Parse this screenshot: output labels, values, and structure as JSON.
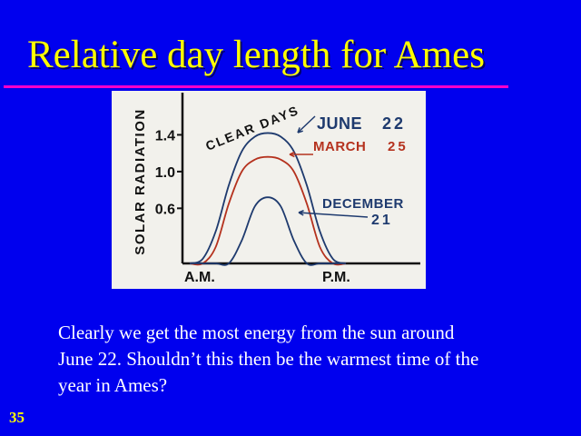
{
  "slide": {
    "title": "Relative day length for Ames",
    "caption": "Clearly we get the most energy from the sun around June 22. Shouldn’t this then be the warmest time of the year in Ames?",
    "number": "35"
  },
  "colors": {
    "background": "#0000ee",
    "title": "#ffff00",
    "rule": "#ff00cc",
    "caption": "#ffffff",
    "june": "#1e3a6e",
    "march": "#b5321e",
    "december": "#1e3a6e"
  },
  "chart_data": {
    "type": "line",
    "title": "",
    "annotation": "CLEAR DAYS",
    "xlabel": "",
    "ylabel": "SOLAR RADIATION",
    "x_tick_labels": [
      "A.M.",
      "P.M."
    ],
    "y_ticks": [
      1.4,
      1.0,
      0.6
    ],
    "y_tick_labels": [
      "1.4",
      "1.0",
      "0.6"
    ],
    "ylim": [
      0,
      1.8
    ],
    "x": [
      0,
      1,
      2,
      3,
      4,
      5,
      6,
      7,
      8,
      9,
      10,
      11,
      12
    ],
    "series": [
      {
        "name": "JUNE 22",
        "color": "#1e3a6e",
        "values": [
          0,
          0.05,
          0.35,
          0.85,
          1.22,
          1.38,
          1.42,
          1.38,
          1.22,
          0.85,
          0.35,
          0.05,
          0
        ]
      },
      {
        "name": "MARCH 25",
        "color": "#b5321e",
        "values": [
          0,
          0,
          0.18,
          0.65,
          1.0,
          1.13,
          1.16,
          1.13,
          1.0,
          0.65,
          0.18,
          0,
          0
        ]
      },
      {
        "name": "DECEMBER 21",
        "color": "#1e3a6e",
        "values": [
          0,
          0,
          0,
          0,
          0.25,
          0.62,
          0.72,
          0.62,
          0.25,
          0,
          0,
          0,
          0
        ]
      }
    ],
    "grid": false
  }
}
